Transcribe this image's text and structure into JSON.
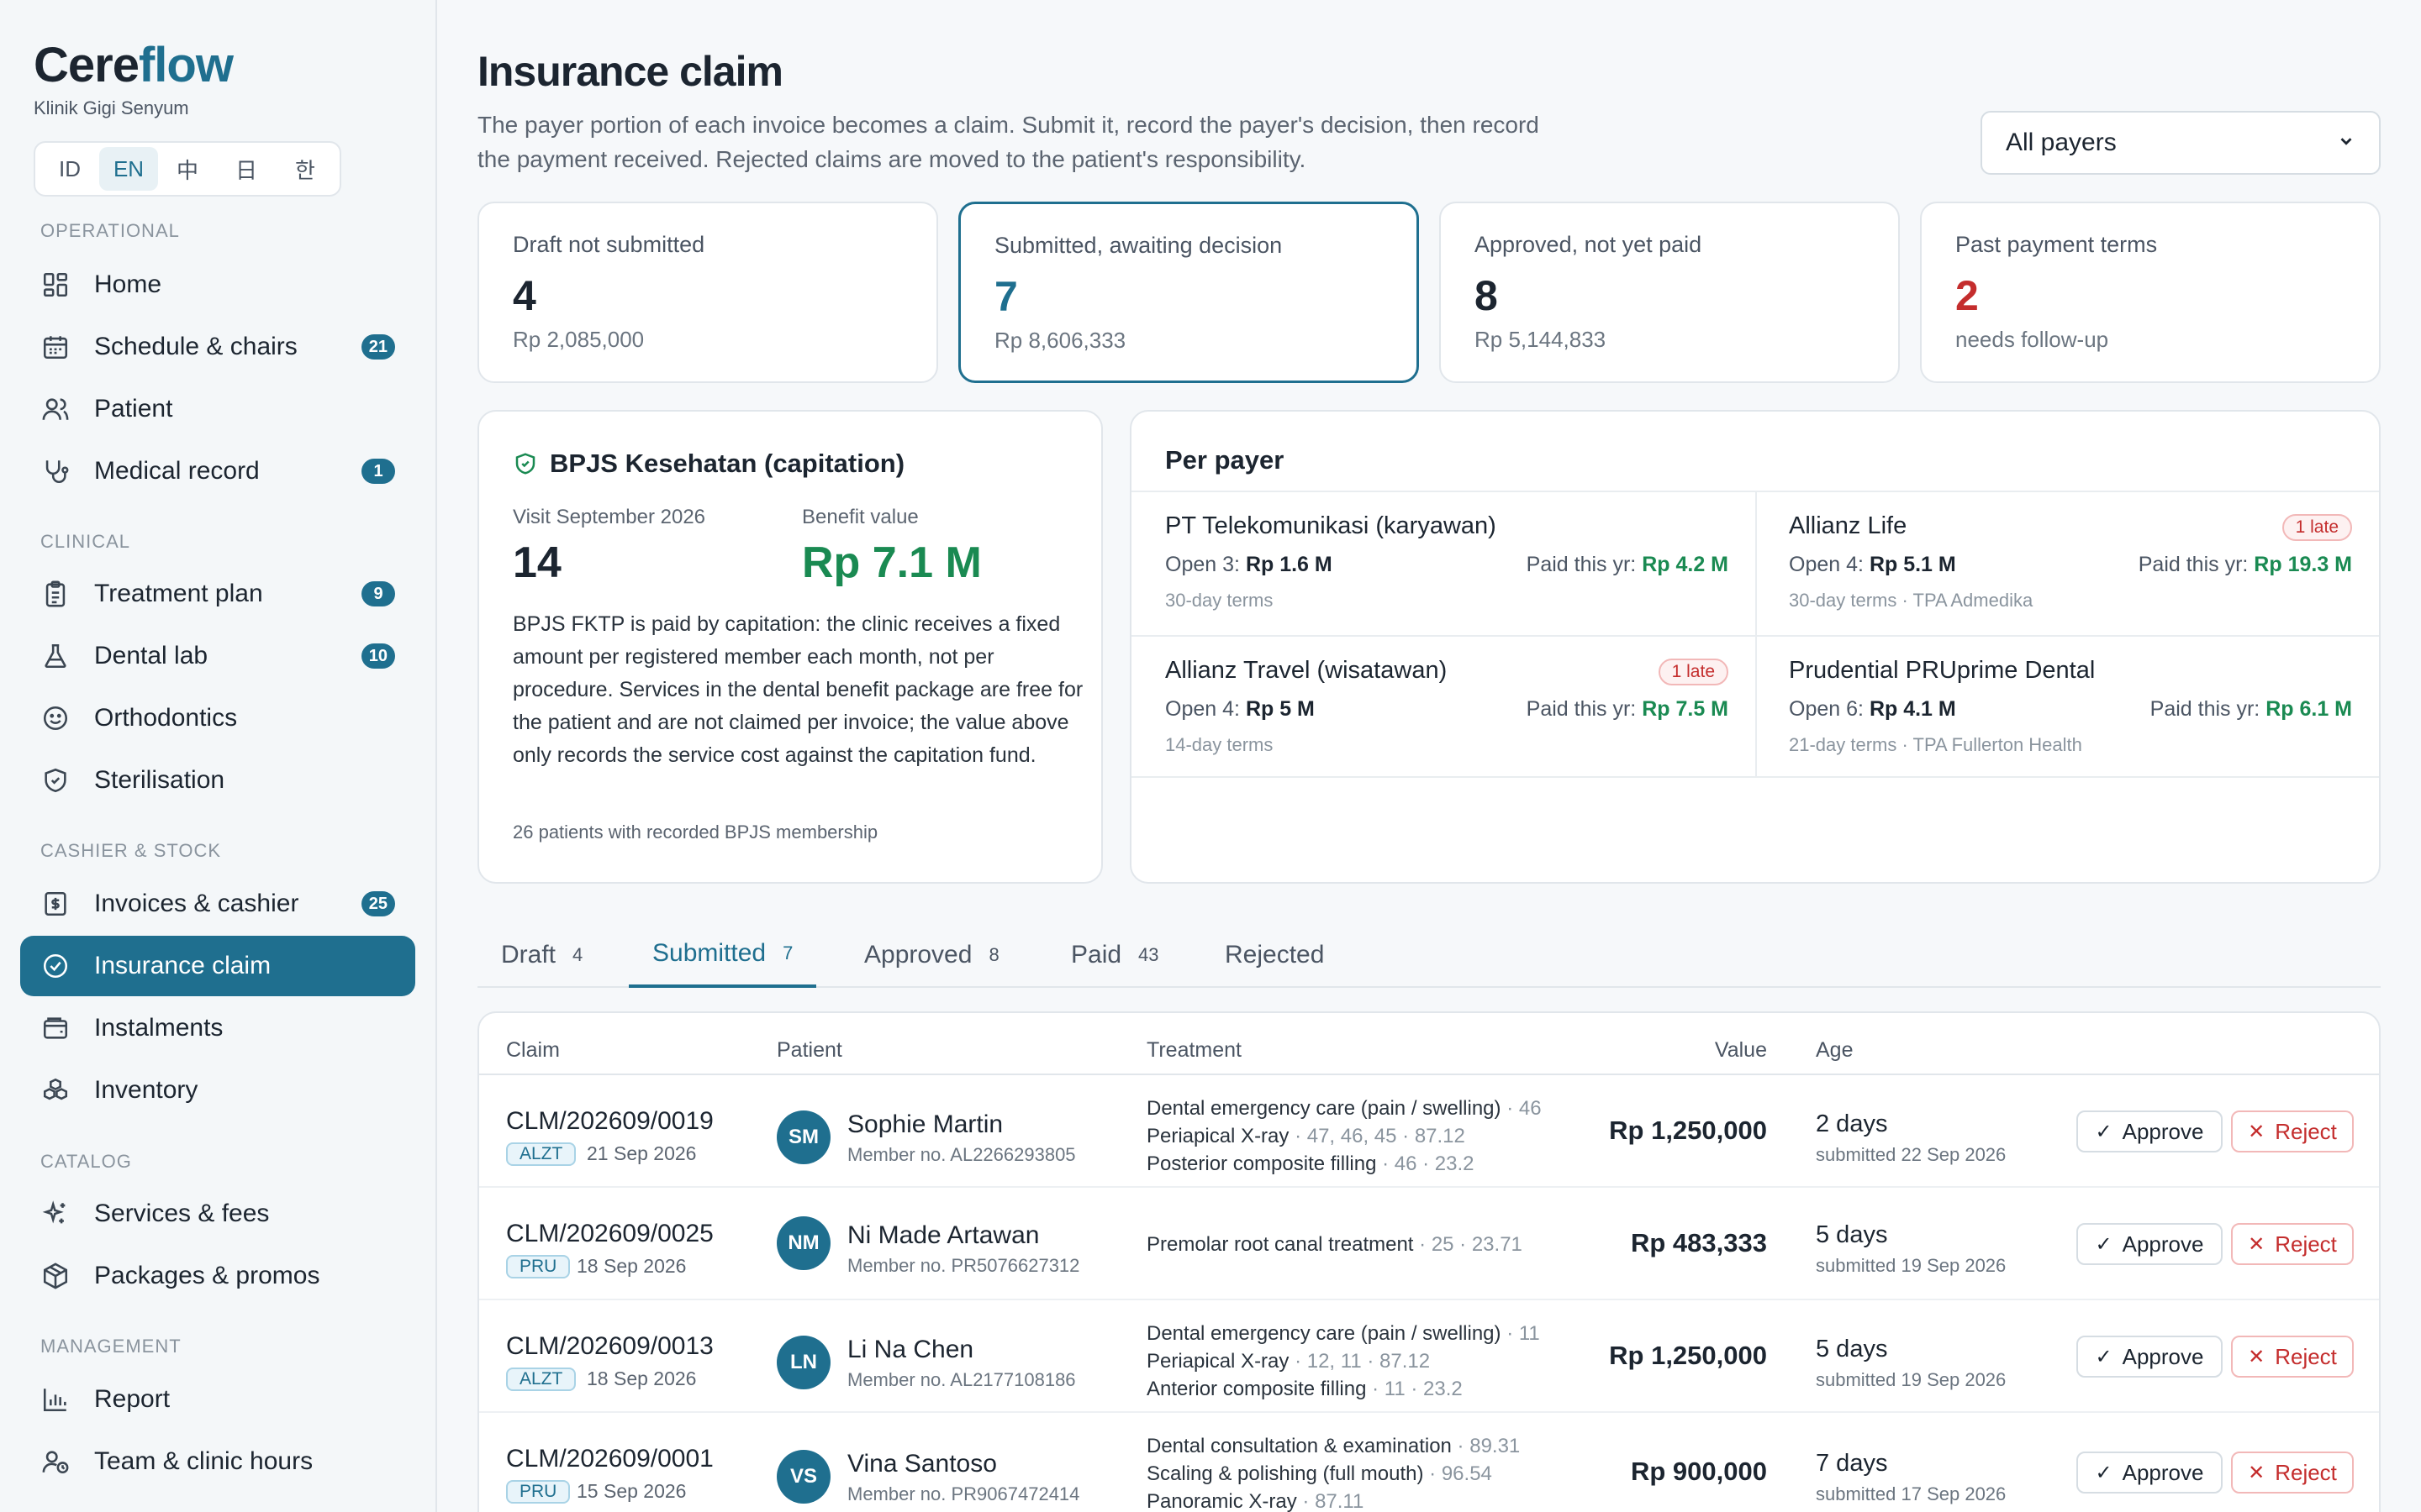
{
  "app": {
    "brand_a": "Cere",
    "brand_b": "flow",
    "clinic": "Klinik Gigi Senyum"
  },
  "languages": [
    "ID",
    "EN",
    "中",
    "日",
    "한"
  ],
  "active_language": "EN",
  "nav": {
    "operational": "OPERATIONAL",
    "clinical": "CLINICAL",
    "cashier": "CASHIER & STOCK",
    "catalog": "CATALOG",
    "management": "MANAGEMENT",
    "items": {
      "home": {
        "label": "Home",
        "icon": "grid-icon"
      },
      "schedule": {
        "label": "Schedule & chairs",
        "badge": "21",
        "icon": "calendar-icon"
      },
      "patient": {
        "label": "Patient",
        "icon": "users-icon"
      },
      "medical": {
        "label": "Medical record",
        "badge": "1",
        "icon": "stethoscope-icon"
      },
      "treatment": {
        "label": "Treatment plan",
        "badge": "9",
        "icon": "clipboard-icon"
      },
      "lab": {
        "label": "Dental lab",
        "badge": "10",
        "icon": "flask-icon"
      },
      "ortho": {
        "label": "Orthodontics",
        "icon": "smile-icon"
      },
      "steril": {
        "label": "Sterilisation",
        "icon": "shield-icon"
      },
      "invoices": {
        "label": "Invoices & cashier",
        "badge": "25",
        "icon": "receipt-icon"
      },
      "insurance": {
        "label": "Insurance claim",
        "icon": "check-circle-icon"
      },
      "instalments": {
        "label": "Instalments",
        "icon": "wallet-icon"
      },
      "inventory": {
        "label": "Inventory",
        "icon": "boxes-icon"
      },
      "services": {
        "label": "Services & fees",
        "icon": "sparkle-icon"
      },
      "packages": {
        "label": "Packages & promos",
        "icon": "package-icon"
      },
      "report": {
        "label": "Report",
        "icon": "bar-chart-icon"
      },
      "team": {
        "label": "Team & clinic hours",
        "icon": "user-clock-icon"
      }
    }
  },
  "header": {
    "title": "Insurance claim",
    "desc_1": "The payer portion of each invoice becomes a claim. Submit it, record the payer's decision, then record",
    "desc_2": "the payment received. Rejected claims are moved to the patient's responsibility.",
    "payer_filter": "All payers"
  },
  "stats": [
    {
      "label": "Draft not submitted",
      "value": "4",
      "sub": "Rp 2,085,000"
    },
    {
      "label": "Submitted, awaiting decision",
      "value": "7",
      "sub": "Rp 8,606,333"
    },
    {
      "label": "Approved, not yet paid",
      "value": "8",
      "sub": "Rp 5,144,833"
    },
    {
      "label": "Past payment terms",
      "value": "2",
      "sub": "needs follow-up"
    }
  ],
  "bpjs": {
    "title": "BPJS Kesehatan (capitation)",
    "visit_label": "Visit September 2026",
    "visit_value": "14",
    "benefit_label": "Benefit value",
    "benefit_value": "Rp 7.1 M",
    "text": "BPJS FKTP is paid by capitation: the clinic receives a fixed amount per registered member each month, not per procedure. Services in the dental benefit package are free for the patient and are not claimed per invoice; the value above only records the service cost against the capitation fund.",
    "footnote": "26 patients with recorded BPJS membership"
  },
  "per_payer": {
    "title": "Per payer",
    "open_prefix": "Open",
    "paid_prefix": "Paid this yr:",
    "payers": [
      {
        "name": "PT Telekomunikasi (karyawan)",
        "open_count": "3:",
        "open_amount": "Rp 1.6 M",
        "paid": "Rp 4.2 M",
        "terms": "30-day terms",
        "late": ""
      },
      {
        "name": "Allianz Life",
        "open_count": "4:",
        "open_amount": "Rp 5.1 M",
        "paid": "Rp 19.3 M",
        "terms": "30-day terms · TPA Admedika",
        "late": "1 late"
      },
      {
        "name": "Allianz Travel (wisatawan)",
        "open_count": "4:",
        "open_amount": "Rp 5 M",
        "paid": "Rp 7.5 M",
        "terms": "14-day terms",
        "late": "1 late"
      },
      {
        "name": "Prudential PRUprime Dental",
        "open_count": "6:",
        "open_amount": "Rp 4.1 M",
        "paid": "Rp 6.1 M",
        "terms": "21-day terms · TPA Fullerton Health",
        "late": ""
      }
    ]
  },
  "tabs": [
    {
      "label": "Draft",
      "count": "4"
    },
    {
      "label": "Submitted",
      "count": "7"
    },
    {
      "label": "Approved",
      "count": "8"
    },
    {
      "label": "Paid",
      "count": "43"
    },
    {
      "label": "Rejected",
      "count": ""
    }
  ],
  "table": {
    "headers": {
      "claim": "Claim",
      "patient": "Patient",
      "treatment": "Treatment",
      "value": "Value",
      "age": "Age"
    },
    "approve_label": "Approve",
    "reject_label": "Reject",
    "rows": [
      {
        "claim": "CLM/202609/0019",
        "tag": "ALZT",
        "date": "21 Sep 2026",
        "initials": "SM",
        "patient": "Sophie Martin",
        "member": "Member no. AL2266293805",
        "treatments": [
          {
            "name": "Dental emergency care (pain / swelling)",
            "meta": " · 46"
          },
          {
            "name": "Periapical X-ray",
            "meta": " · 47, 46, 45 · 87.12"
          },
          {
            "name": "Posterior composite filling",
            "meta": " · 46 · 23.2"
          }
        ],
        "value": "Rp 1,250,000",
        "age": "2 days",
        "submitted": "submitted 22 Sep 2026"
      },
      {
        "claim": "CLM/202609/0025",
        "tag": "PRU",
        "date": "18 Sep 2026",
        "initials": "NM",
        "patient": "Ni Made Artawan",
        "member": "Member no. PR5076627312",
        "treatments": [
          {
            "name": "Premolar root canal treatment",
            "meta": " · 25 · 23.71"
          }
        ],
        "value": "Rp 483,333",
        "age": "5 days",
        "submitted": "submitted 19 Sep 2026"
      },
      {
        "claim": "CLM/202609/0013",
        "tag": "ALZT",
        "date": "18 Sep 2026",
        "initials": "LN",
        "patient": "Li Na Chen",
        "member": "Member no. AL2177108186",
        "treatments": [
          {
            "name": "Dental emergency care (pain / swelling)",
            "meta": " · 11"
          },
          {
            "name": "Periapical X-ray",
            "meta": " · 12, 11 · 87.12"
          },
          {
            "name": "Anterior composite filling",
            "meta": " · 11 · 23.2"
          }
        ],
        "value": "Rp 1,250,000",
        "age": "5 days",
        "submitted": "submitted 19 Sep 2026"
      },
      {
        "claim": "CLM/202609/0001",
        "tag": "PRU",
        "date": "15 Sep 2026",
        "initials": "VS",
        "patient": "Vina Santoso",
        "member": "Member no. PR9067472414",
        "treatments": [
          {
            "name": "Dental consultation & examination",
            "meta": " · 89.31"
          },
          {
            "name": "Scaling & polishing (full mouth)",
            "meta": " · 96.54"
          },
          {
            "name": "Panoramic X-ray",
            "meta": " · 87.11"
          }
        ],
        "value": "Rp 900,000",
        "age": "7 days",
        "submitted": "submitted 17 Sep 2026"
      }
    ]
  },
  "colors": {
    "accent": "#1f6f8f",
    "danger": "#c42d2d",
    "success": "#1a8a52"
  }
}
